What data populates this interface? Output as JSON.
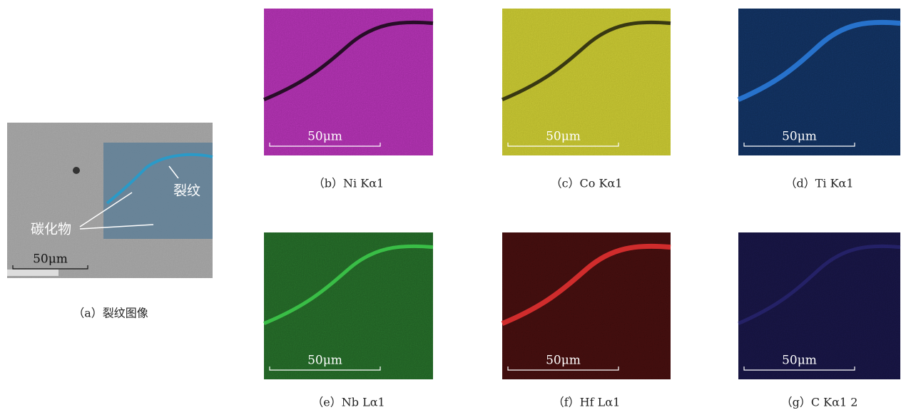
{
  "panels": [
    {
      "caption": "（a）裂纹图像",
      "scale_label": "50μm",
      "annotations": [
        "裂纹",
        "碳化物"
      ]
    },
    {
      "caption": "（b）Ni Kα1",
      "scale_label": "50μm"
    },
    {
      "caption": "（c）Co Kα1",
      "scale_label": "50μm"
    },
    {
      "caption": "（d）Ti Kα1",
      "scale_label": "50μm"
    },
    {
      "caption": "（e）Nb Lα1",
      "scale_label": "50μm"
    },
    {
      "caption": "（f）Hf Lα1",
      "scale_label": "50μm"
    },
    {
      "caption": "（g）C Kα1 2",
      "scale_label": "50μm"
    }
  ]
}
